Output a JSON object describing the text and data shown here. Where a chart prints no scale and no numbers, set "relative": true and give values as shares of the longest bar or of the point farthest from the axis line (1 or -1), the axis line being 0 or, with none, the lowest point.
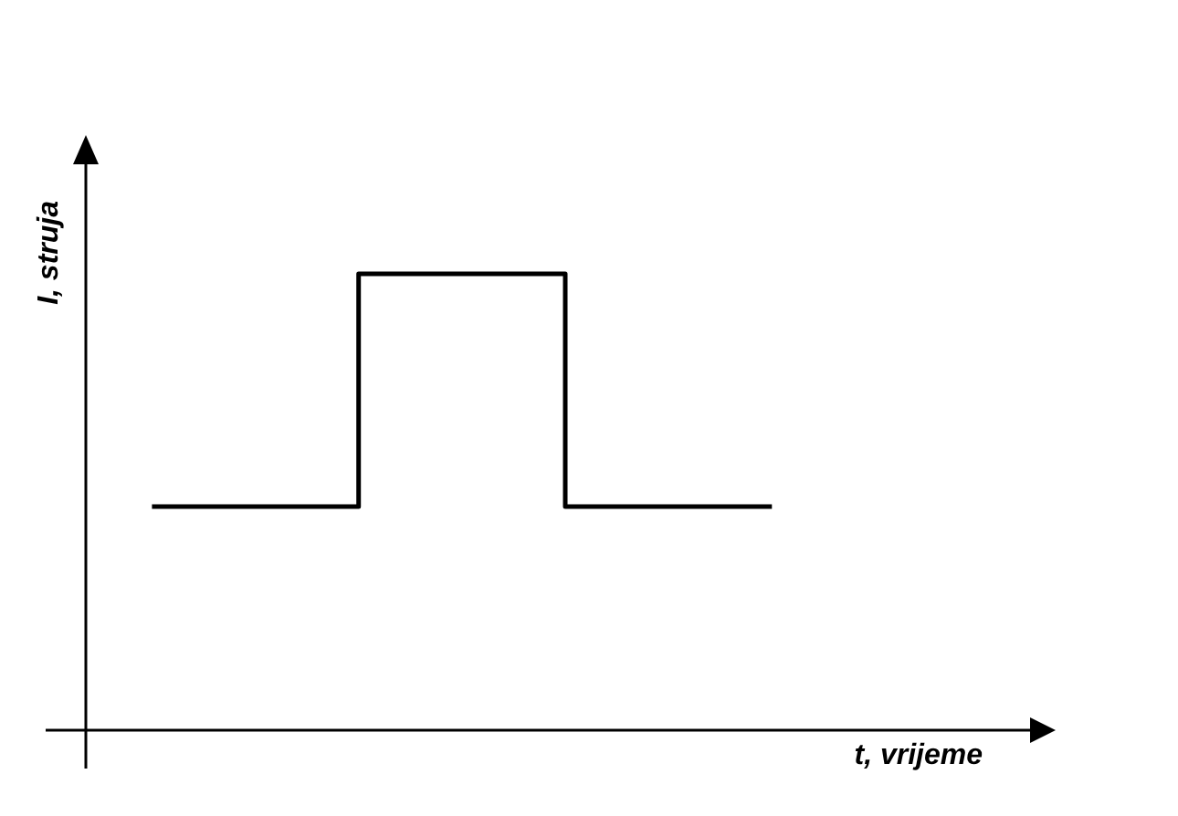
{
  "chart_data": {
    "type": "step",
    "relative": true,
    "xlabel": "t, vrijeme",
    "ylabel": "I, struja",
    "categories": [
      null,
      null,
      null,
      null
    ],
    "values": [
      0.49,
      1,
      0.49,
      0.49
    ],
    "color": "#000000"
  }
}
